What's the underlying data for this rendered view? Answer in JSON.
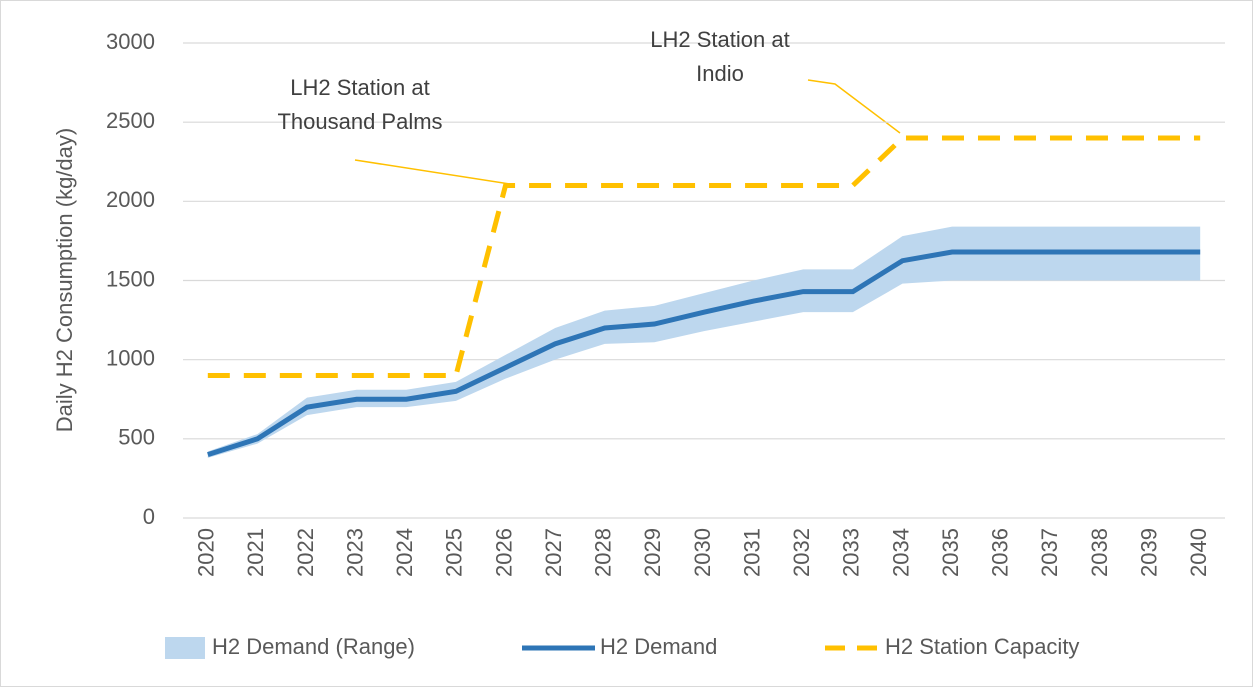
{
  "chart_data": {
    "type": "line",
    "y_axis_label": "Daily H2 Consumption (kg/day)",
    "categories": [
      "2020",
      "2021",
      "2022",
      "2023",
      "2024",
      "2025",
      "2026",
      "2027",
      "2028",
      "2029",
      "2030",
      "2031",
      "2032",
      "2033",
      "2034",
      "2035",
      "2036",
      "2037",
      "2038",
      "2039",
      "2040"
    ],
    "ylim": [
      0,
      3000
    ],
    "yticks": [
      0,
      500,
      1000,
      1500,
      2000,
      2500,
      3000
    ],
    "grid": true,
    "range_series": {
      "name": "H2 Demand (Range)",
      "color": "#bdd7ee",
      "low": [
        380,
        470,
        650,
        700,
        700,
        740,
        880,
        1000,
        1100,
        1110,
        1180,
        1240,
        1300,
        1300,
        1480,
        1500,
        1500,
        1500,
        1500,
        1500,
        1500
      ],
      "high": [
        420,
        530,
        760,
        810,
        810,
        860,
        1030,
        1200,
        1310,
        1340,
        1420,
        1500,
        1570,
        1570,
        1780,
        1840,
        1840,
        1840,
        1840,
        1840,
        1840
      ]
    },
    "series": [
      {
        "name": "H2 Demand",
        "color": "#2e75b6",
        "dashed": false,
        "values": [
          400,
          500,
          700,
          750,
          750,
          800,
          950,
          1100,
          1200,
          1225,
          1300,
          1370,
          1430,
          1430,
          1625,
          1680,
          1680,
          1680,
          1680,
          1680,
          1680
        ]
      },
      {
        "name": "H2 Station Capacity",
        "color": "#ffc000",
        "dashed": true,
        "values": [
          900,
          900,
          900,
          900,
          900,
          900,
          2100,
          2100,
          2100,
          2100,
          2100,
          2100,
          2100,
          2100,
          2400,
          2400,
          2400,
          2400,
          2400,
          2400,
          2400
        ]
      }
    ],
    "annotations": [
      {
        "lines": [
          "LH2 Station at",
          "Thousand Palms"
        ]
      },
      {
        "lines": [
          "LH2 Station at",
          "Indio"
        ]
      }
    ],
    "legend": "bottom"
  }
}
